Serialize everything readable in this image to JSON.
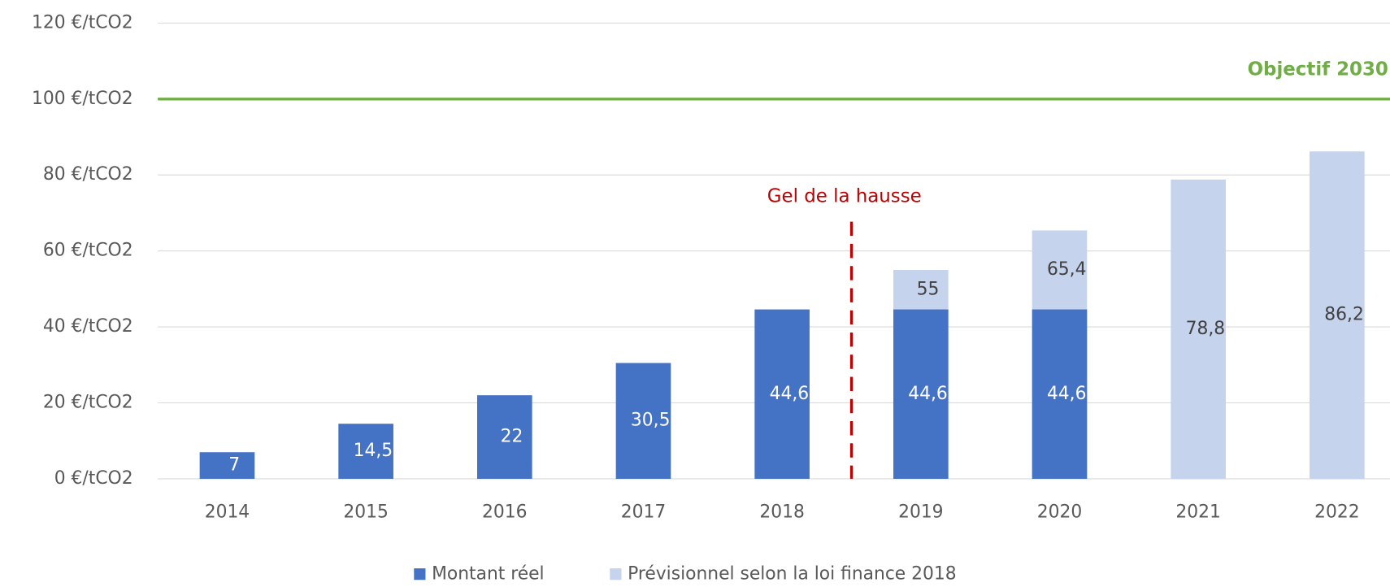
{
  "chart_data": {
    "type": "bar",
    "overlap": true,
    "categories": [
      "2014",
      "2015",
      "2016",
      "2017",
      "2018",
      "2019",
      "2020",
      "2021",
      "2022"
    ],
    "series": [
      {
        "name": "Prévisionnel selon la loi finance 2018",
        "color": "#c5d3ed",
        "label_color": "#404040",
        "values": [
          null,
          null,
          null,
          null,
          null,
          55,
          65.4,
          78.8,
          86.2
        ],
        "value_labels": [
          null,
          null,
          null,
          null,
          null,
          "55",
          "65,4",
          "78,8",
          "86,2"
        ]
      },
      {
        "name": "Montant réel",
        "color": "#4472c4",
        "label_color": "#ffffff",
        "values": [
          7,
          14.5,
          22,
          30.5,
          44.6,
          44.6,
          44.6,
          null,
          null
        ],
        "value_labels": [
          "7",
          "14,5",
          "22",
          "30,5",
          "44,6",
          "44,6",
          "44,6",
          null,
          null
        ]
      }
    ],
    "legend_order": [
      1,
      0
    ],
    "ylim": [
      0,
      120
    ],
    "yticks": [
      {
        "value": 0,
        "label": "0 €/tCO2"
      },
      {
        "value": 20,
        "label": "20 €/tCO2"
      },
      {
        "value": 40,
        "label": "40 €/tCO2"
      },
      {
        "value": 60,
        "label": "60 €/tCO2"
      },
      {
        "value": 80,
        "label": "80 €/tCO2"
      },
      {
        "value": 100,
        "label": "100 €/tCO2"
      },
      {
        "value": 120,
        "label": "120 €/tCO2"
      }
    ],
    "grid": true,
    "reference_lines": [
      {
        "value": 100,
        "label": "Objectif 2030",
        "color": "#70ad47"
      }
    ],
    "markers": [
      {
        "after_category": "2018",
        "label": "Gel de la hausse",
        "color": "#c00000"
      }
    ]
  }
}
